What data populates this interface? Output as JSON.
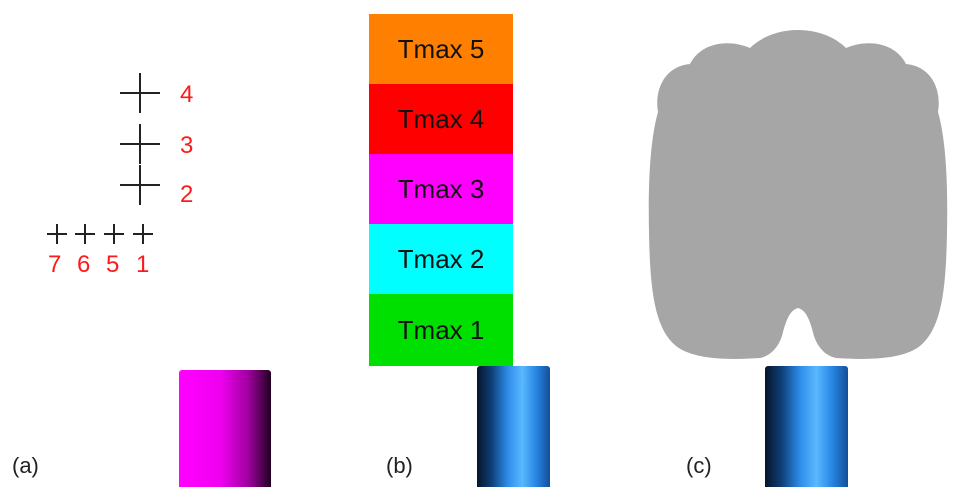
{
  "panels": {
    "a": {
      "label": "(a)",
      "points": [
        {
          "id": "4",
          "label": "4"
        },
        {
          "id": "3",
          "label": "3"
        },
        {
          "id": "2",
          "label": "2"
        },
        {
          "id": "7",
          "label": "7"
        },
        {
          "id": "6",
          "label": "6"
        },
        {
          "id": "5",
          "label": "5"
        },
        {
          "id": "1",
          "label": "1"
        }
      ],
      "cylinder_color": "#ff00ff"
    },
    "b": {
      "label": "(b)",
      "zones": [
        {
          "label": "Tmax 5",
          "color": "#ff8000"
        },
        {
          "label": "Tmax 4",
          "color": "#ff0000"
        },
        {
          "label": "Tmax 3",
          "color": "#ff00ff"
        },
        {
          "label": "Tmax 2",
          "color": "#00ffff"
        },
        {
          "label": "Tmax 1",
          "color": "#00e000"
        }
      ],
      "cylinder_color": "#2d8ce8"
    },
    "c": {
      "label": "(c)",
      "shape_color": "#a6a6a6",
      "cylinder_color": "#2d8ce8"
    }
  }
}
